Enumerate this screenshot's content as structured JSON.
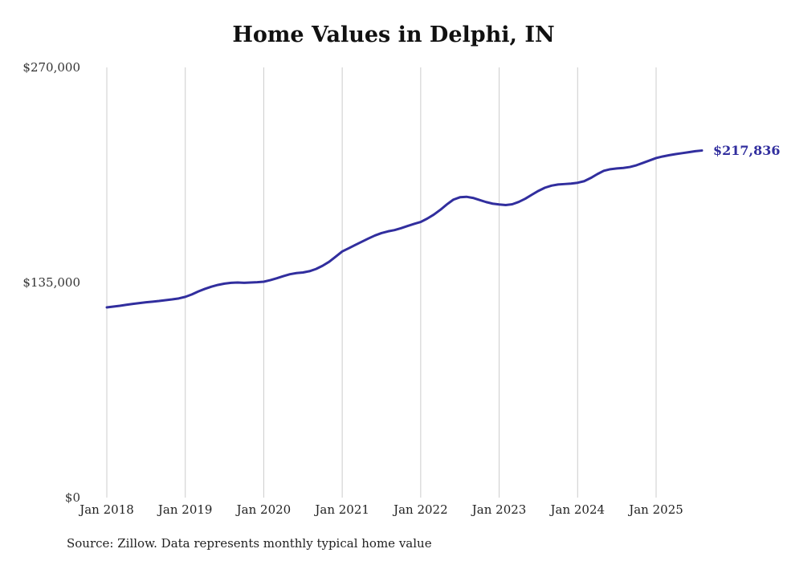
{
  "chart_data": {
    "type": "line",
    "title": "Home Values in Delphi, IN",
    "source": "Source: Zillow. Data represents monthly typical home value",
    "end_label": "$217,836",
    "line_color": "#312e9e",
    "grid_color": "#cccccc",
    "xlabel": "",
    "ylabel": "",
    "ylim": [
      0,
      270000
    ],
    "grid": "vertical-only",
    "legend": "none",
    "x_start": "Jan 2018",
    "x_end": "Aug 2025",
    "frequency": "monthly",
    "y_ticks": [
      {
        "value": 0,
        "label": "$0"
      },
      {
        "value": 135000,
        "label": "$135,000"
      },
      {
        "value": 270000,
        "label": "$270,000"
      }
    ],
    "x_ticks": [
      {
        "month_index": 0,
        "label": "Jan 2018"
      },
      {
        "month_index": 12,
        "label": "Jan 2019"
      },
      {
        "month_index": 24,
        "label": "Jan 2020"
      },
      {
        "month_index": 36,
        "label": "Jan 2021"
      },
      {
        "month_index": 48,
        "label": "Jan 2022"
      },
      {
        "month_index": 60,
        "label": "Jan 2023"
      },
      {
        "month_index": 72,
        "label": "Jan 2024"
      },
      {
        "month_index": 84,
        "label": "Jan 2025"
      }
    ],
    "values": [
      119400,
      119900,
      120400,
      121000,
      121600,
      122100,
      122600,
      123000,
      123400,
      123900,
      124400,
      125000,
      126000,
      127500,
      129400,
      131000,
      132400,
      133500,
      134300,
      134800,
      135000,
      134800,
      135000,
      135200,
      135500,
      136500,
      137700,
      139000,
      140200,
      140900,
      141300,
      142100,
      143500,
      145500,
      148000,
      151200,
      154500,
      156500,
      158600,
      160600,
      162600,
      164500,
      166000,
      167100,
      167900,
      169100,
      170500,
      171800,
      173000,
      175100,
      177600,
      180600,
      184000,
      187000,
      188500,
      188800,
      188100,
      186800,
      185500,
      184500,
      184000,
      183600,
      184100,
      185600,
      187600,
      190100,
      192500,
      194500,
      195800,
      196500,
      196800,
      197100,
      197600,
      198600,
      200600,
      203000,
      205100,
      206100,
      206600,
      206900,
      207500,
      208600,
      210100,
      211600,
      213100,
      214100,
      214900,
      215600,
      216200,
      216800,
      217400,
      217836
    ]
  }
}
